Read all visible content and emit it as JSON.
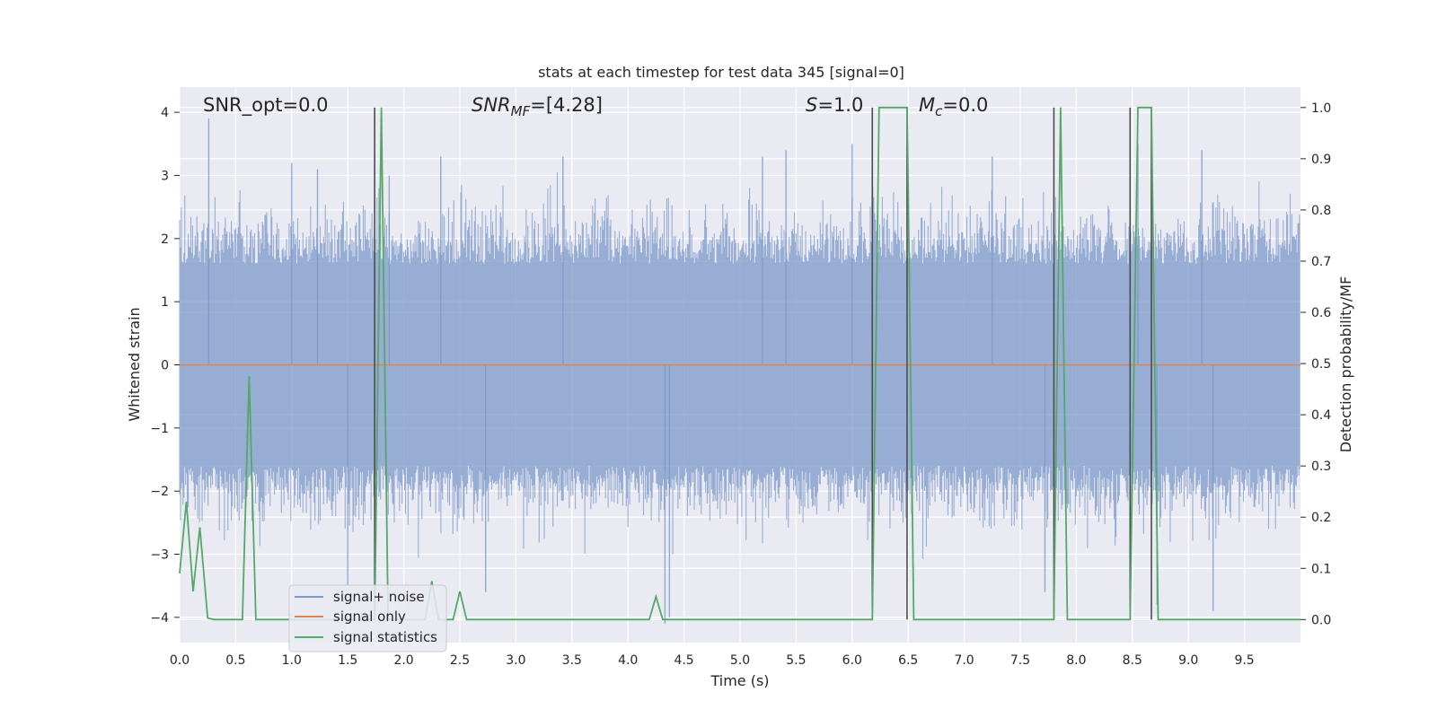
{
  "chart_data": {
    "type": "line",
    "title": "stats at each timestep for test data 345 [signal=0]",
    "xlabel": "Time (s)",
    "ylabel_left": "Whitened strain",
    "ylabel_right": "Detection probability/MF",
    "xlim": [
      0,
      10
    ],
    "ylim_left": [
      -4.4,
      4.4
    ],
    "ylim_right": [
      -0.045,
      1.04
    ],
    "x_ticks": [
      "0.0",
      "0.5",
      "1.0",
      "1.5",
      "2.0",
      "2.5",
      "3.0",
      "3.5",
      "4.0",
      "4.5",
      "5.0",
      "5.5",
      "6.0",
      "6.5",
      "7.0",
      "7.5",
      "8.0",
      "8.5",
      "9.0",
      "9.5"
    ],
    "y_ticks_left": [
      "4",
      "3",
      "2",
      "1",
      "0",
      "−1",
      "−2",
      "−3",
      "−4"
    ],
    "y_ticks_right": [
      "1.0",
      "0.9",
      "0.8",
      "0.7",
      "0.6",
      "0.5",
      "0.4",
      "0.3",
      "0.2",
      "0.1",
      "0.0"
    ],
    "grid": true,
    "annotations": {
      "snr_opt": "SNR_opt=0.0",
      "snr_mf_main": "SNR",
      "snr_mf_sub": "MF",
      "snr_mf_rest": "=[4.28]",
      "s_main": "S",
      "s_rest": "=1.0",
      "mc_main": "M",
      "mc_sub": "c",
      "mc_rest": "=0.0"
    },
    "legend": {
      "position": "lower-left",
      "entries": [
        "signal+ noise",
        "signal only",
        "signal statistics"
      ]
    },
    "series": [
      {
        "name": "signal+ noise",
        "axis": "left",
        "color": "#7b98c8",
        "description_values": "whitened noise strain, roughly ±2 with spikes up to about ±3.9",
        "spikes": [
          {
            "x": 0.26,
            "y": 3.9
          },
          {
            "x": 1.0,
            "y": 3.2
          },
          {
            "x": 1.23,
            "y": 3.1
          },
          {
            "x": 1.87,
            "y": 3.0
          },
          {
            "x": 2.33,
            "y": 3.3
          },
          {
            "x": 3.42,
            "y": 3.3
          },
          {
            "x": 5.2,
            "y": 3.3
          },
          {
            "x": 5.41,
            "y": 3.4
          },
          {
            "x": 6.0,
            "y": 3.5
          },
          {
            "x": 7.25,
            "y": 3.3
          },
          {
            "x": 8.55,
            "y": 3.5
          },
          {
            "x": 9.12,
            "y": 3.4
          },
          {
            "x": 1.5,
            "y": -3.5
          },
          {
            "x": 2.73,
            "y": -3.6
          },
          {
            "x": 4.33,
            "y": -4.1
          },
          {
            "x": 4.37,
            "y": -4.0
          },
          {
            "x": 9.22,
            "y": -3.9
          },
          {
            "x": 8.72,
            "y": -3.8
          },
          {
            "x": 7.72,
            "y": -3.6
          }
        ]
      },
      {
        "name": "signal only",
        "axis": "left",
        "color": "#dd8452",
        "x": [
          0,
          10
        ],
        "y": [
          0,
          0
        ]
      },
      {
        "name": "signal statistics",
        "axis": "right",
        "color": "#55a868",
        "x": [
          0.0,
          0.06,
          0.12,
          0.18,
          0.25,
          0.31,
          0.37,
          0.56,
          0.62,
          0.68,
          1.74,
          1.8,
          1.86,
          2.19,
          2.25,
          2.31,
          2.44,
          2.5,
          2.56,
          4.19,
          4.25,
          4.31,
          6.18,
          6.24,
          6.3,
          6.49,
          6.55,
          7.8,
          7.86,
          7.92,
          8.48,
          8.55,
          8.67,
          8.73,
          10.0
        ],
        "y": [
          0.09,
          0.23,
          0.055,
          0.18,
          0.003,
          0.0,
          0.0,
          0.0,
          0.475,
          0.0,
          0.0,
          1.0,
          0.0,
          0.0,
          0.075,
          0.0,
          0.0,
          0.055,
          0.0,
          0.0,
          0.045,
          0.0,
          0.0,
          1.0,
          1.0,
          1.0,
          0.0,
          0.0,
          1.0,
          0.0,
          0.0,
          1.0,
          1.0,
          0.0,
          0.0
        ]
      },
      {
        "name": "detection markers",
        "axis": "right",
        "color": "#4c4c4c",
        "x": [
          1.74,
          6.18,
          6.49,
          7.8,
          8.48,
          8.67
        ]
      }
    ]
  }
}
